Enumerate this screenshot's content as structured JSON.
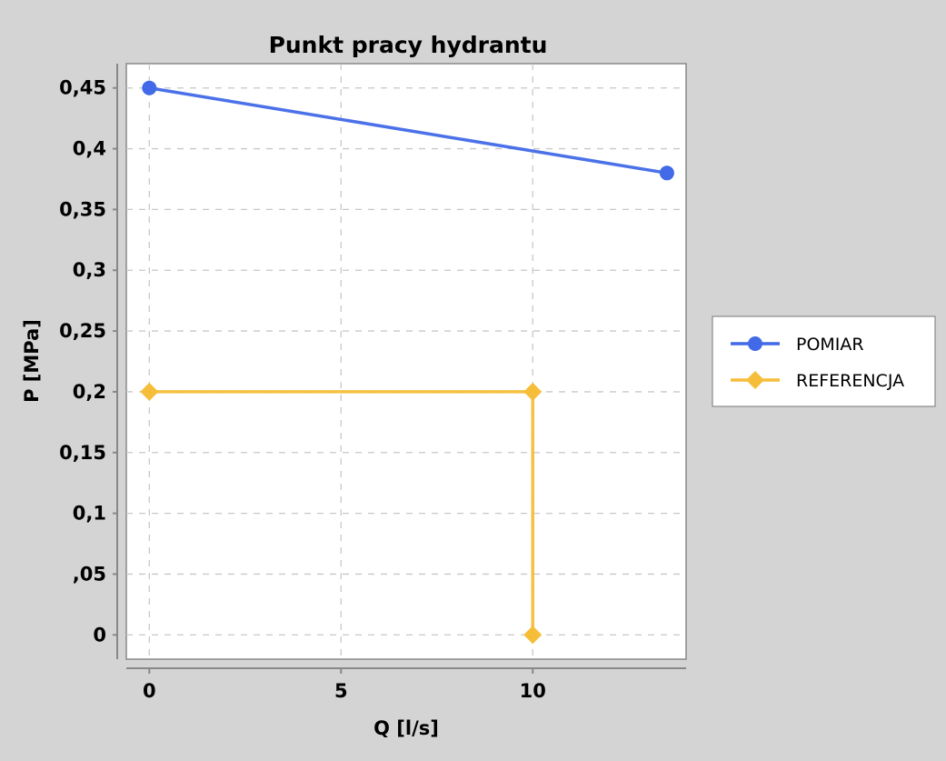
{
  "chart_data": {
    "type": "line",
    "title": "Punkt pracy hydrantu",
    "xlabel": "Q [l/s]",
    "ylabel": "P [MPa]",
    "xlim": [
      -0.6,
      14.0
    ],
    "ylim": [
      -0.02,
      0.47
    ],
    "x_ticks": [
      {
        "value": 0,
        "label": "0"
      },
      {
        "value": 5,
        "label": "5"
      },
      {
        "value": 10,
        "label": "10"
      }
    ],
    "y_ticks": [
      {
        "value": 0.45,
        "label": "0,45"
      },
      {
        "value": 0.4,
        "label": "0,4"
      },
      {
        "value": 0.35,
        "label": "0,35"
      },
      {
        "value": 0.3,
        "label": "0,3"
      },
      {
        "value": 0.25,
        "label": "0,25"
      },
      {
        "value": 0.2,
        "label": "0,2"
      },
      {
        "value": 0.15,
        "label": "0,15"
      },
      {
        "value": 0.1,
        "label": "0,1"
      },
      {
        "value": 0.05,
        "label": ",05"
      },
      {
        "value": 0,
        "label": "0"
      }
    ],
    "grid": true,
    "legend_position": "right",
    "series": [
      {
        "name": "POMIAR",
        "color": "#4169e8",
        "marker": "circle",
        "points": [
          [
            0,
            0.45
          ],
          [
            13.5,
            0.38
          ]
        ]
      },
      {
        "name": "REFERENCJA",
        "color": "#f6bd38",
        "marker": "diamond",
        "points": [
          [
            0,
            0.2
          ],
          [
            10,
            0.2
          ],
          [
            10,
            0
          ]
        ]
      }
    ]
  }
}
